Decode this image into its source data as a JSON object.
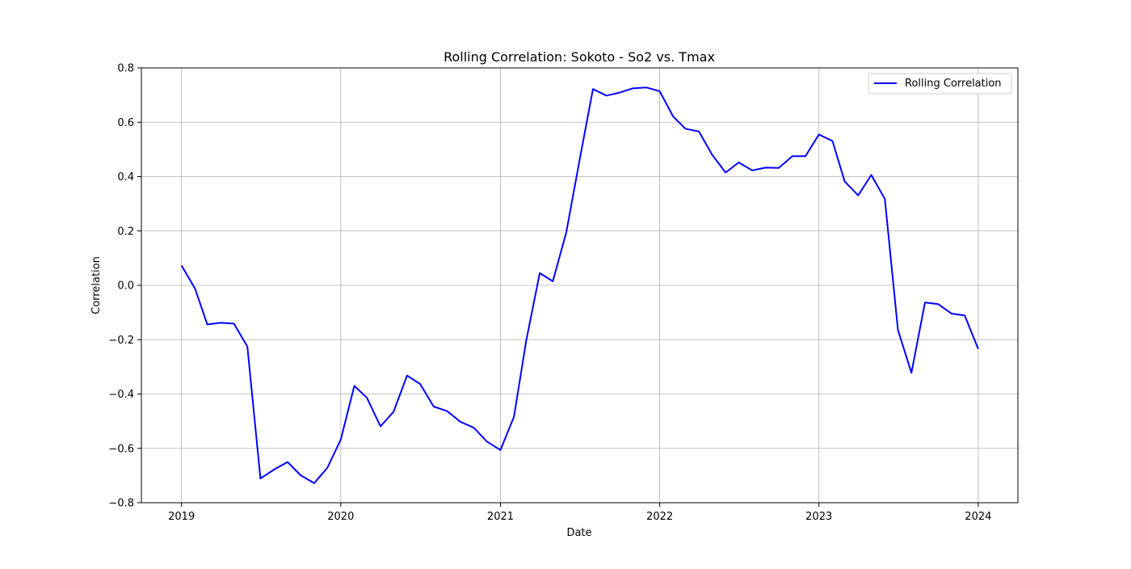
{
  "chart_data": {
    "type": "line",
    "title": "Rolling Correlation: Sokoto - So2 vs. Tmax",
    "xlabel": "Date",
    "ylabel": "Correlation",
    "x_ticks": [
      "2019",
      "2020",
      "2021",
      "2022",
      "2023",
      "2024"
    ],
    "y_ticks": [
      "−0.8",
      "−0.6",
      "−0.4",
      "−0.2",
      "0.0",
      "0.2",
      "0.4",
      "0.6",
      "0.8"
    ],
    "xlim": [
      "2018-10-01",
      "2024-04-01"
    ],
    "ylim": [
      -0.8,
      0.8
    ],
    "grid": true,
    "legend_position": "top-right",
    "series": [
      {
        "name": "Rolling Correlation",
        "color": "#0000ff",
        "x": [
          "2019-01-01",
          "2019-02-01",
          "2019-03-01",
          "2019-04-01",
          "2019-05-01",
          "2019-06-01",
          "2019-07-01",
          "2019-08-01",
          "2019-09-01",
          "2019-10-01",
          "2019-11-01",
          "2019-12-01",
          "2020-01-01",
          "2020-02-01",
          "2020-03-01",
          "2020-04-01",
          "2020-05-01",
          "2020-06-01",
          "2020-07-01",
          "2020-08-01",
          "2020-09-01",
          "2020-10-01",
          "2020-11-01",
          "2020-12-01",
          "2021-01-01",
          "2021-02-01",
          "2021-03-01",
          "2021-04-01",
          "2021-05-01",
          "2021-06-01",
          "2021-07-01",
          "2021-08-01",
          "2021-09-01",
          "2021-10-01",
          "2021-11-01",
          "2021-12-01",
          "2022-01-01",
          "2022-02-01",
          "2022-03-01",
          "2022-04-01",
          "2022-05-01",
          "2022-06-01",
          "2022-07-01",
          "2022-08-01",
          "2022-09-01",
          "2022-10-01",
          "2022-11-01",
          "2022-12-01",
          "2023-01-01",
          "2023-02-01",
          "2023-03-01",
          "2023-04-01",
          "2023-05-01",
          "2023-06-01",
          "2023-07-01",
          "2023-08-01",
          "2023-09-01",
          "2023-10-01",
          "2023-11-01",
          "2023-12-01",
          "2024-01-01"
        ],
        "y": [
          0.073,
          -0.012,
          -0.144,
          -0.138,
          -0.141,
          -0.225,
          -0.711,
          -0.678,
          -0.65,
          -0.699,
          -0.728,
          -0.672,
          -0.568,
          -0.37,
          -0.414,
          -0.519,
          -0.465,
          -0.332,
          -0.363,
          -0.446,
          -0.463,
          -0.502,
          -0.524,
          -0.575,
          -0.606,
          -0.484,
          -0.205,
          0.045,
          0.015,
          0.195,
          0.457,
          0.722,
          0.698,
          0.709,
          0.725,
          0.728,
          0.714,
          0.621,
          0.576,
          0.566,
          0.481,
          0.415,
          0.452,
          0.423,
          0.433,
          0.432,
          0.475,
          0.475,
          0.555,
          0.531,
          0.382,
          0.331,
          0.406,
          0.318,
          -0.164,
          -0.322,
          -0.063,
          -0.069,
          -0.104,
          -0.111,
          -0.234
        ]
      }
    ]
  }
}
